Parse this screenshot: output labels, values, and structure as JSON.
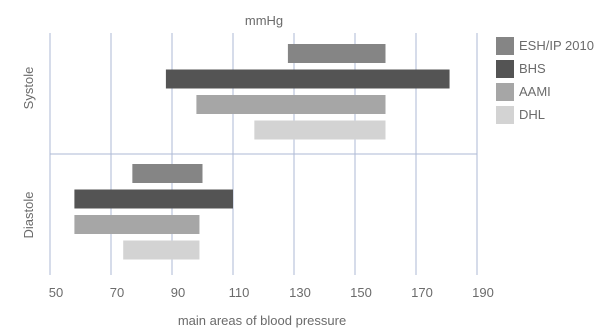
{
  "chart_data": {
    "type": "bar",
    "orientation": "horizontal-range",
    "title": "mmHg",
    "xlabel": "main areas of blood pressure",
    "ylabel": "",
    "xlim": [
      50,
      190
    ],
    "xticks": [
      "50",
      "70",
      "90",
      "110",
      "130",
      "150",
      "170",
      "190"
    ],
    "groups": [
      "Systole",
      "Diastole"
    ],
    "grid": true,
    "legend_position": "right",
    "series": [
      {
        "name": "ESH/IP 2010",
        "color": "#858585",
        "ranges": {
          "Systole": [
            128,
            160
          ],
          "Diastole": [
            77,
            100
          ]
        }
      },
      {
        "name": "BHS",
        "color": "#545454",
        "ranges": {
          "Systole": [
            88,
            181
          ],
          "Diastole": [
            58,
            110
          ]
        }
      },
      {
        "name": "AAMI",
        "color": "#a6a6a6",
        "ranges": {
          "Systole": [
            98,
            160
          ],
          "Diastole": [
            58,
            99
          ]
        }
      },
      {
        "name": "DHL",
        "color": "#d3d3d3",
        "ranges": {
          "Systole": [
            117,
            160
          ],
          "Diastole": [
            74,
            99
          ]
        }
      }
    ]
  }
}
